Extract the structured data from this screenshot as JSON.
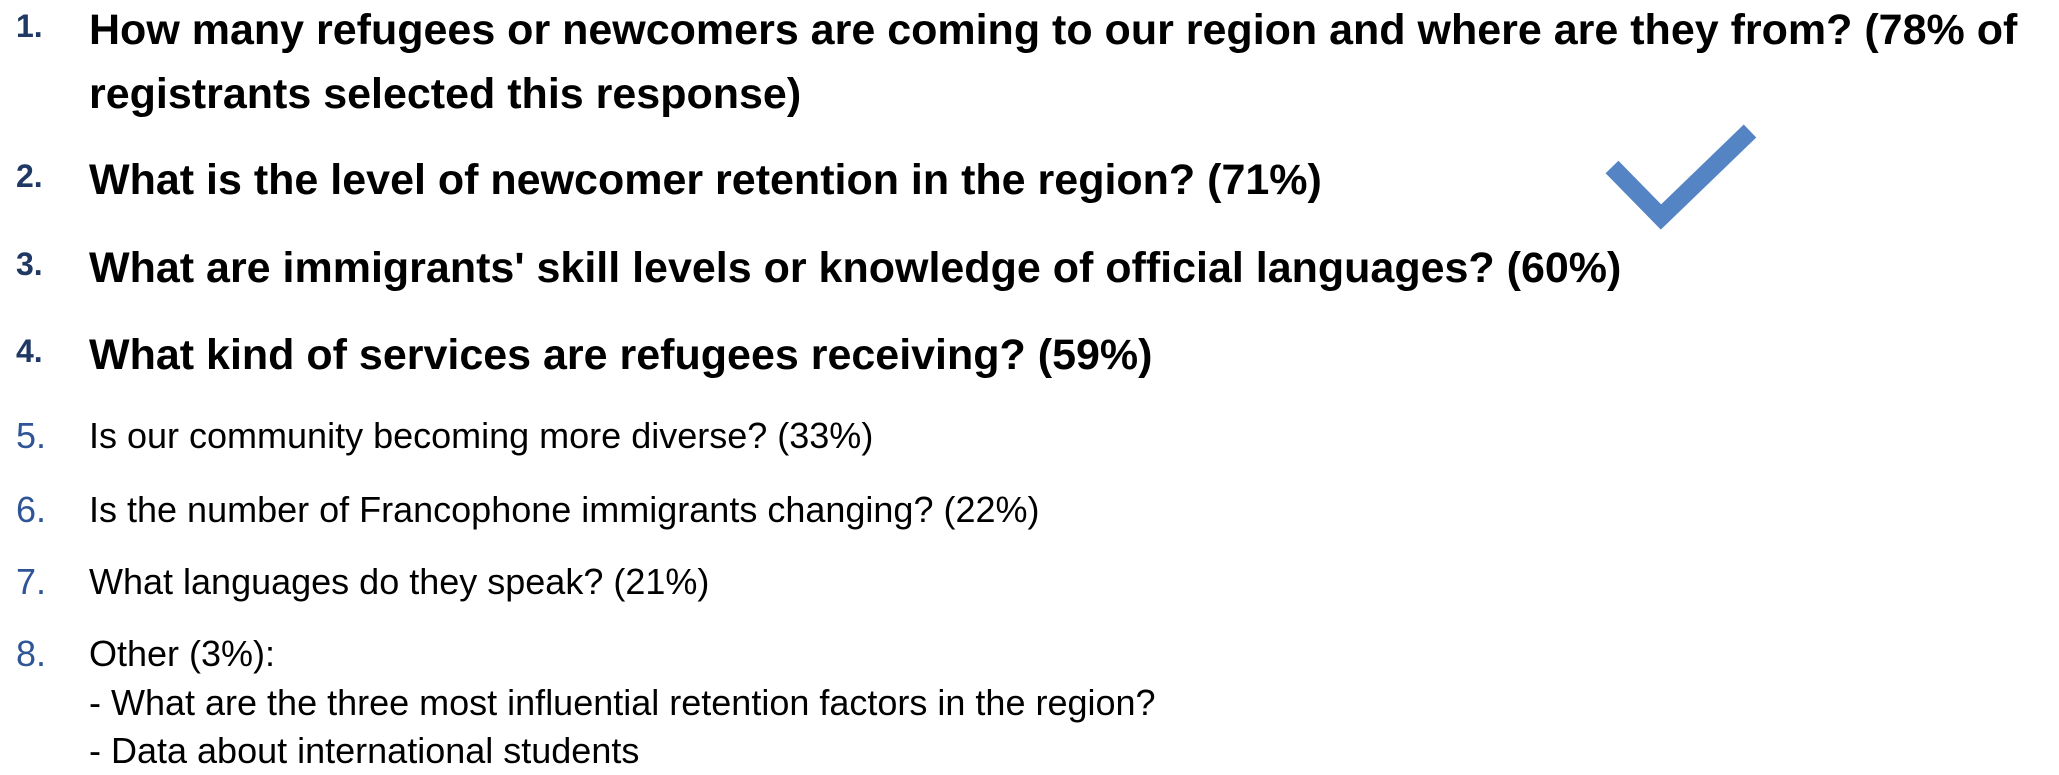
{
  "items": [
    {
      "number": "1.",
      "text": "How many refugees or newcomers are coming to our region and where are they from? (78% of registrants selected this response)"
    },
    {
      "number": "2.",
      "text": "What is the level of newcomer retention in the region? (71%)"
    },
    {
      "number": "3.",
      "text": "What are immigrants' skill levels or knowledge of official languages? (60%)"
    },
    {
      "number": "4.",
      "text": "What kind of services are refugees receiving? (59%)"
    },
    {
      "number": "5.",
      "text": "Is our community becoming more diverse? (33%)"
    },
    {
      "number": "6.",
      "text": "Is the number of Francophone immigrants changing? (22%)"
    },
    {
      "number": "7.",
      "text": "What languages do they speak? (21%)"
    },
    {
      "number": "8.",
      "text": "Other (3%):",
      "sub": [
        "- What are the three most influential retention factors in the region?",
        "- Data about international students"
      ]
    }
  ]
}
